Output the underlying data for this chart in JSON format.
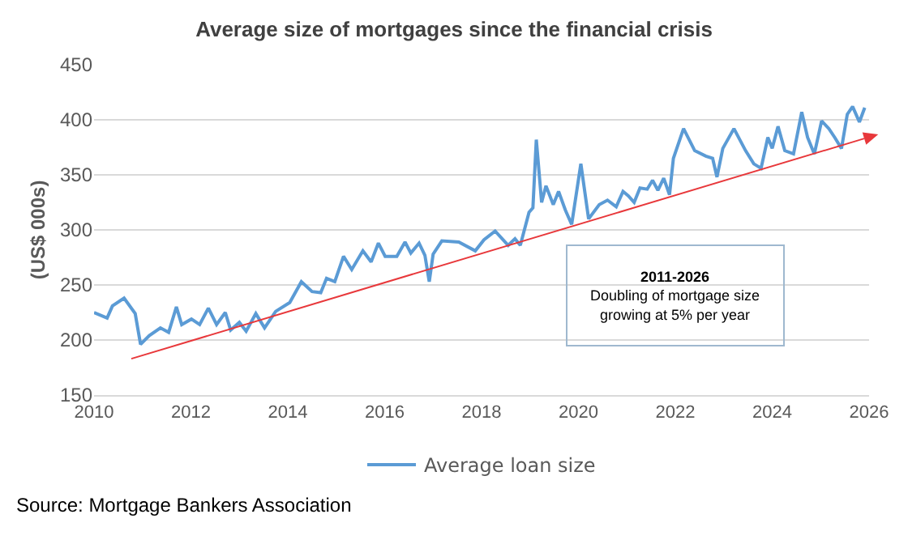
{
  "chart_data": {
    "type": "line",
    "title": "Average size of mortgages since the financial crisis",
    "ylabel": "(US$ 000s)",
    "xlim": [
      2010,
      2026
    ],
    "xticks": [
      2010,
      2012,
      2014,
      2016,
      2018,
      2020,
      2022,
      2024,
      2026
    ],
    "ylim": [
      150,
      450
    ],
    "yticks": [
      150,
      200,
      250,
      300,
      350,
      400,
      450
    ],
    "grid": "y",
    "legend": "bottom",
    "marker": "none",
    "line_style": "solid",
    "series": [
      {
        "name": "Average loan size",
        "color": "#5b9bd5",
        "x": [
          2010.0,
          2010.27,
          2010.38,
          2010.62,
          2010.85,
          2010.96,
          2011.14,
          2011.37,
          2011.54,
          2011.7,
          2011.81,
          2012.01,
          2012.18,
          2012.36,
          2012.53,
          2012.71,
          2012.82,
          2013.0,
          2013.14,
          2013.34,
          2013.52,
          2013.75,
          2014.04,
          2014.28,
          2014.5,
          2014.68,
          2014.8,
          2014.97,
          2015.15,
          2015.32,
          2015.55,
          2015.72,
          2015.87,
          2016.01,
          2016.25,
          2016.42,
          2016.54,
          2016.71,
          2016.83,
          2016.92,
          2017.0,
          2017.18,
          2017.53,
          2017.87,
          2018.05,
          2018.28,
          2018.55,
          2018.69,
          2018.8,
          2018.98,
          2019.06,
          2019.13,
          2019.24,
          2019.33,
          2019.48,
          2019.59,
          2019.73,
          2019.86,
          2020.05,
          2020.21,
          2020.43,
          2020.6,
          2020.78,
          2020.92,
          2021.03,
          2021.15,
          2021.27,
          2021.42,
          2021.53,
          2021.64,
          2021.76,
          2021.88,
          2021.96,
          2022.17,
          2022.4,
          2022.63,
          2022.77,
          2022.86,
          2022.98,
          2023.21,
          2023.45,
          2023.62,
          2023.77,
          2023.91,
          2024.0,
          2024.12,
          2024.26,
          2024.44,
          2024.61,
          2024.73,
          2024.87,
          2025.02,
          2025.17,
          2025.29,
          2025.43,
          2025.55,
          2025.66,
          2025.8,
          2025.91
        ],
        "values": [
          225,
          220,
          231,
          238,
          224,
          196,
          204,
          211,
          207,
          230,
          214,
          219,
          214,
          229,
          214,
          225,
          209,
          216,
          208,
          224,
          211,
          226,
          234,
          253,
          244,
          243,
          256,
          253,
          276,
          264,
          281,
          271,
          288,
          276,
          276,
          289,
          279,
          288,
          277,
          253,
          278,
          290,
          289,
          281,
          291,
          299,
          286,
          292,
          286,
          316,
          320,
          382,
          325,
          340,
          323,
          335,
          318,
          305,
          360,
          310,
          323,
          327,
          321,
          335,
          331,
          325,
          338,
          337,
          345,
          336,
          347,
          332,
          365,
          392,
          372,
          367,
          365,
          348,
          374,
          392,
          372,
          360,
          356,
          384,
          374,
          394,
          372,
          369,
          407,
          384,
          369,
          399,
          392,
          384,
          374,
          405,
          412,
          398,
          411
        ]
      }
    ],
    "annotations": [
      "2011-2026\nDoubling of mortgage size\ngrowing at 5% per year",
      "Source: Mortgage Bankers Association"
    ]
  }
}
